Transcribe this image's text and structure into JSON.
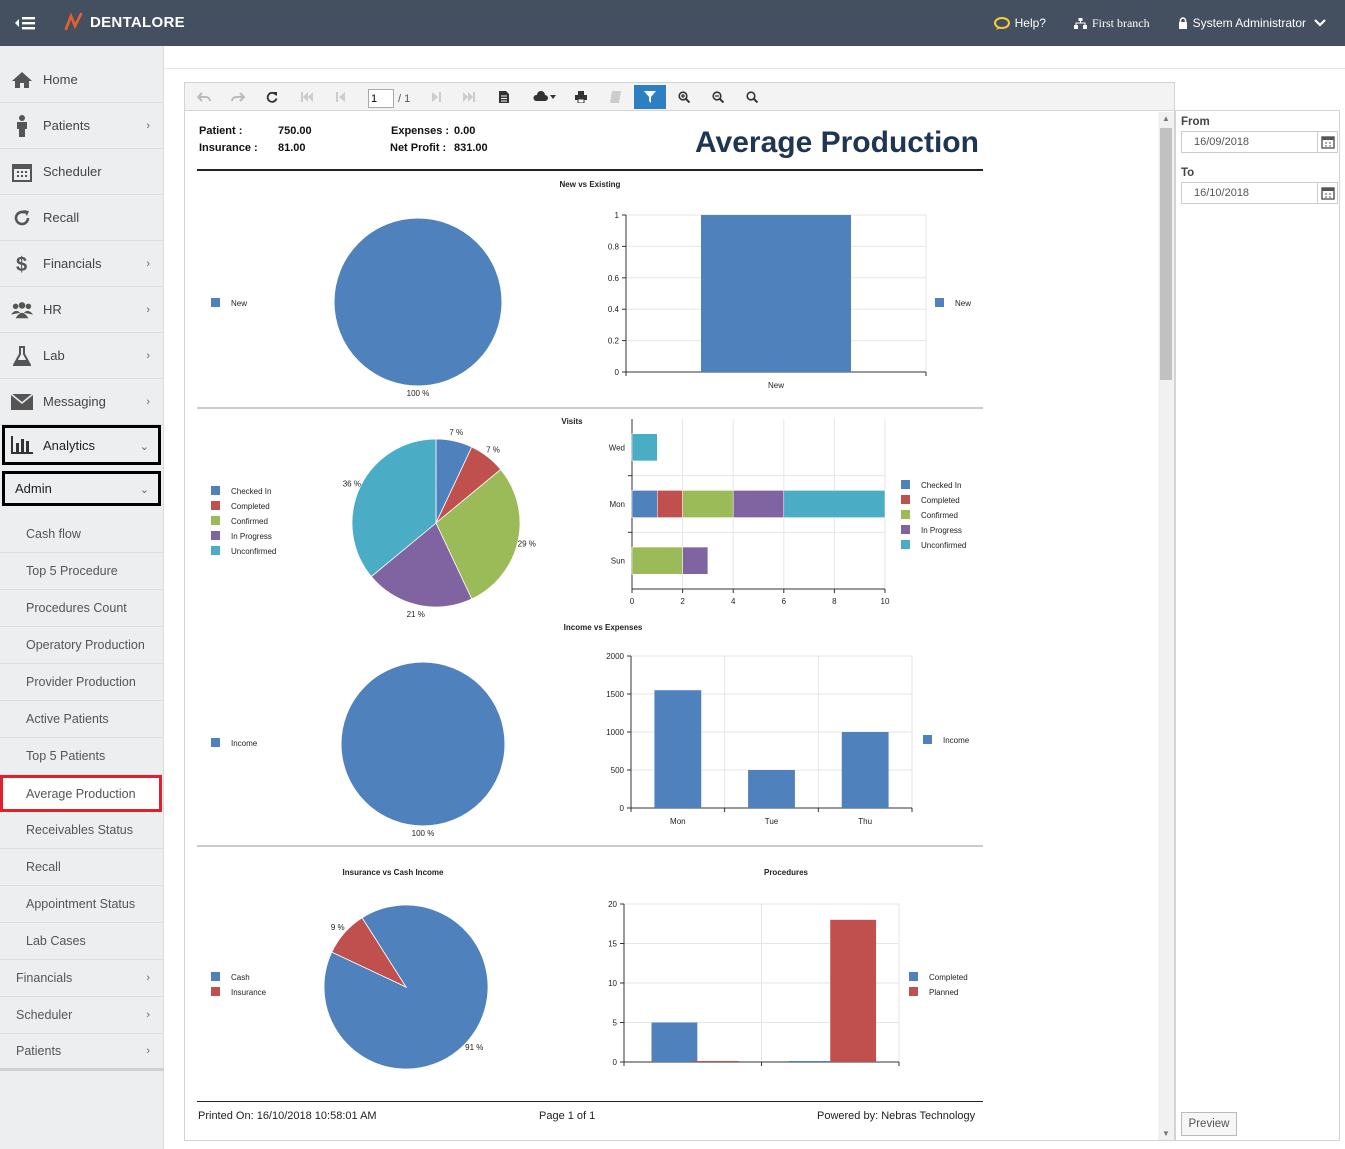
{
  "app": {
    "brand": "DENTALORE"
  },
  "topbar": {
    "help": "Help?",
    "branch": "First branch",
    "user": "System Administrator"
  },
  "sidebar": {
    "items": [
      {
        "label": "Home",
        "icon": "home-icon"
      },
      {
        "label": "Patients",
        "icon": "person-icon"
      },
      {
        "label": "Scheduler",
        "icon": "calendar-icon"
      },
      {
        "label": "Recall",
        "icon": "refresh-icon"
      },
      {
        "label": "Financials",
        "icon": "dollar-icon"
      },
      {
        "label": "HR",
        "icon": "users-icon"
      },
      {
        "label": "Lab",
        "icon": "flask-icon"
      },
      {
        "label": "Messaging",
        "icon": "envelope-icon"
      },
      {
        "label": "Analytics",
        "icon": "bar-chart-icon"
      }
    ],
    "admin": "Admin",
    "subitems": [
      "Cash flow",
      "Top 5 Procedure",
      "Procedures Count",
      "Operatory Production",
      "Provider Production",
      "Active Patients",
      "Top 5 Patients",
      "Average Production",
      "Receivables Status",
      "Recall",
      "Appointment Status",
      "Lab Cases"
    ],
    "sections": [
      "Financials",
      "Scheduler",
      "Patients"
    ]
  },
  "toolbar": {
    "page": "1",
    "total": "/ 1"
  },
  "report": {
    "title": "Average Production",
    "patient_label": "Patient :",
    "patient_value": "750.00",
    "insurance_label": "Insurance :",
    "insurance_value": "81.00",
    "expenses_label": "Expenses :",
    "expenses_value": "0.00",
    "net_profit_label": "Net Profit :",
    "net_profit_value": "831.00",
    "printed_on": "Printed On: 16/10/2018 10:58:01 AM",
    "page_of": "Page 1 of 1",
    "powered_by": "Powered by: Nebras Technology"
  },
  "params": {
    "from_label": "From",
    "from_value": "16/09/2018",
    "to_label": "To",
    "to_value": "16/10/2018",
    "preview": "Preview"
  },
  "colors": {
    "blue": "#4f81bd",
    "red": "#c0504d",
    "green": "#9bbb59",
    "purple": "#8064a2",
    "teal": "#4bacc6",
    "topbar": "#444f60",
    "brand_accent": "#e8612c"
  },
  "chart_data": [
    {
      "type": "pie",
      "title": "New vs Existing",
      "labels": [
        "New"
      ],
      "values": [
        100
      ],
      "slice_labels": [
        "100 %"
      ],
      "legend": [
        "New"
      ]
    },
    {
      "type": "bar",
      "title": "",
      "categories": [
        "New"
      ],
      "series": [
        {
          "name": "New",
          "values": [
            1
          ]
        }
      ],
      "ylim": [
        0,
        1
      ],
      "yticks": [
        "0",
        "0.2",
        "0.4",
        "0.6",
        "0.8",
        "1"
      ],
      "legend": [
        "New"
      ]
    },
    {
      "type": "pie",
      "title": "Visits",
      "labels": [
        "Checked In",
        "Completed",
        "Confirmed",
        "In Progress",
        "Unconfirmed"
      ],
      "values": [
        7,
        7,
        29,
        21,
        36
      ],
      "slice_labels": [
        "7 %",
        "7 %",
        "29 %",
        "21 %",
        "36 %"
      ],
      "legend": [
        "Checked In",
        "Completed",
        "Confirmed",
        "In Progress",
        "Unconfirmed"
      ]
    },
    {
      "type": "bar",
      "orientation": "horizontal",
      "stacked": true,
      "title": "",
      "categories": [
        "Wed",
        "Mon",
        "Sun"
      ],
      "series": [
        {
          "name": "Checked In",
          "values": [
            0,
            1,
            0
          ]
        },
        {
          "name": "Completed",
          "values": [
            0,
            1,
            0
          ]
        },
        {
          "name": "Confirmed",
          "values": [
            0,
            2,
            2
          ]
        },
        {
          "name": "In Progress",
          "values": [
            0,
            2,
            1
          ]
        },
        {
          "name": "Unconfirmed",
          "values": [
            1,
            4,
            0
          ]
        }
      ],
      "xlim": [
        0,
        10
      ],
      "xticks": [
        "0",
        "2",
        "4",
        "6",
        "8",
        "10"
      ],
      "legend": [
        "Checked In",
        "Completed",
        "Confirmed",
        "In Progress",
        "Unconfirmed"
      ]
    },
    {
      "type": "pie",
      "title": "Income vs Expenses",
      "labels": [
        "Income"
      ],
      "values": [
        100
      ],
      "slice_labels": [
        "100 %"
      ],
      "legend": [
        "Income"
      ]
    },
    {
      "type": "bar",
      "title": "",
      "categories": [
        "Mon",
        "Tue",
        "Thu"
      ],
      "series": [
        {
          "name": "Income",
          "values": [
            1550,
            500,
            1000
          ]
        }
      ],
      "ylim": [
        0,
        2000
      ],
      "yticks": [
        "0",
        "500",
        "1000",
        "1500",
        "2000"
      ],
      "legend": [
        "Income"
      ]
    },
    {
      "type": "pie",
      "title": "Insurance vs Cash Income",
      "labels": [
        "Cash",
        "Insurance"
      ],
      "values": [
        91,
        9
      ],
      "slice_labels": [
        "91 %",
        "9 %"
      ],
      "legend": [
        "Cash",
        "Insurance"
      ]
    },
    {
      "type": "bar",
      "title": "Procedures",
      "categories": [
        "",
        ""
      ],
      "series": [
        {
          "name": "Completed",
          "values": [
            5,
            0
          ]
        },
        {
          "name": "Planned",
          "values": [
            0,
            18
          ]
        }
      ],
      "ylim": [
        0,
        20
      ],
      "yticks": [
        "0",
        "5",
        "10",
        "15",
        "20"
      ],
      "legend": [
        "Completed",
        "Planned"
      ]
    }
  ]
}
